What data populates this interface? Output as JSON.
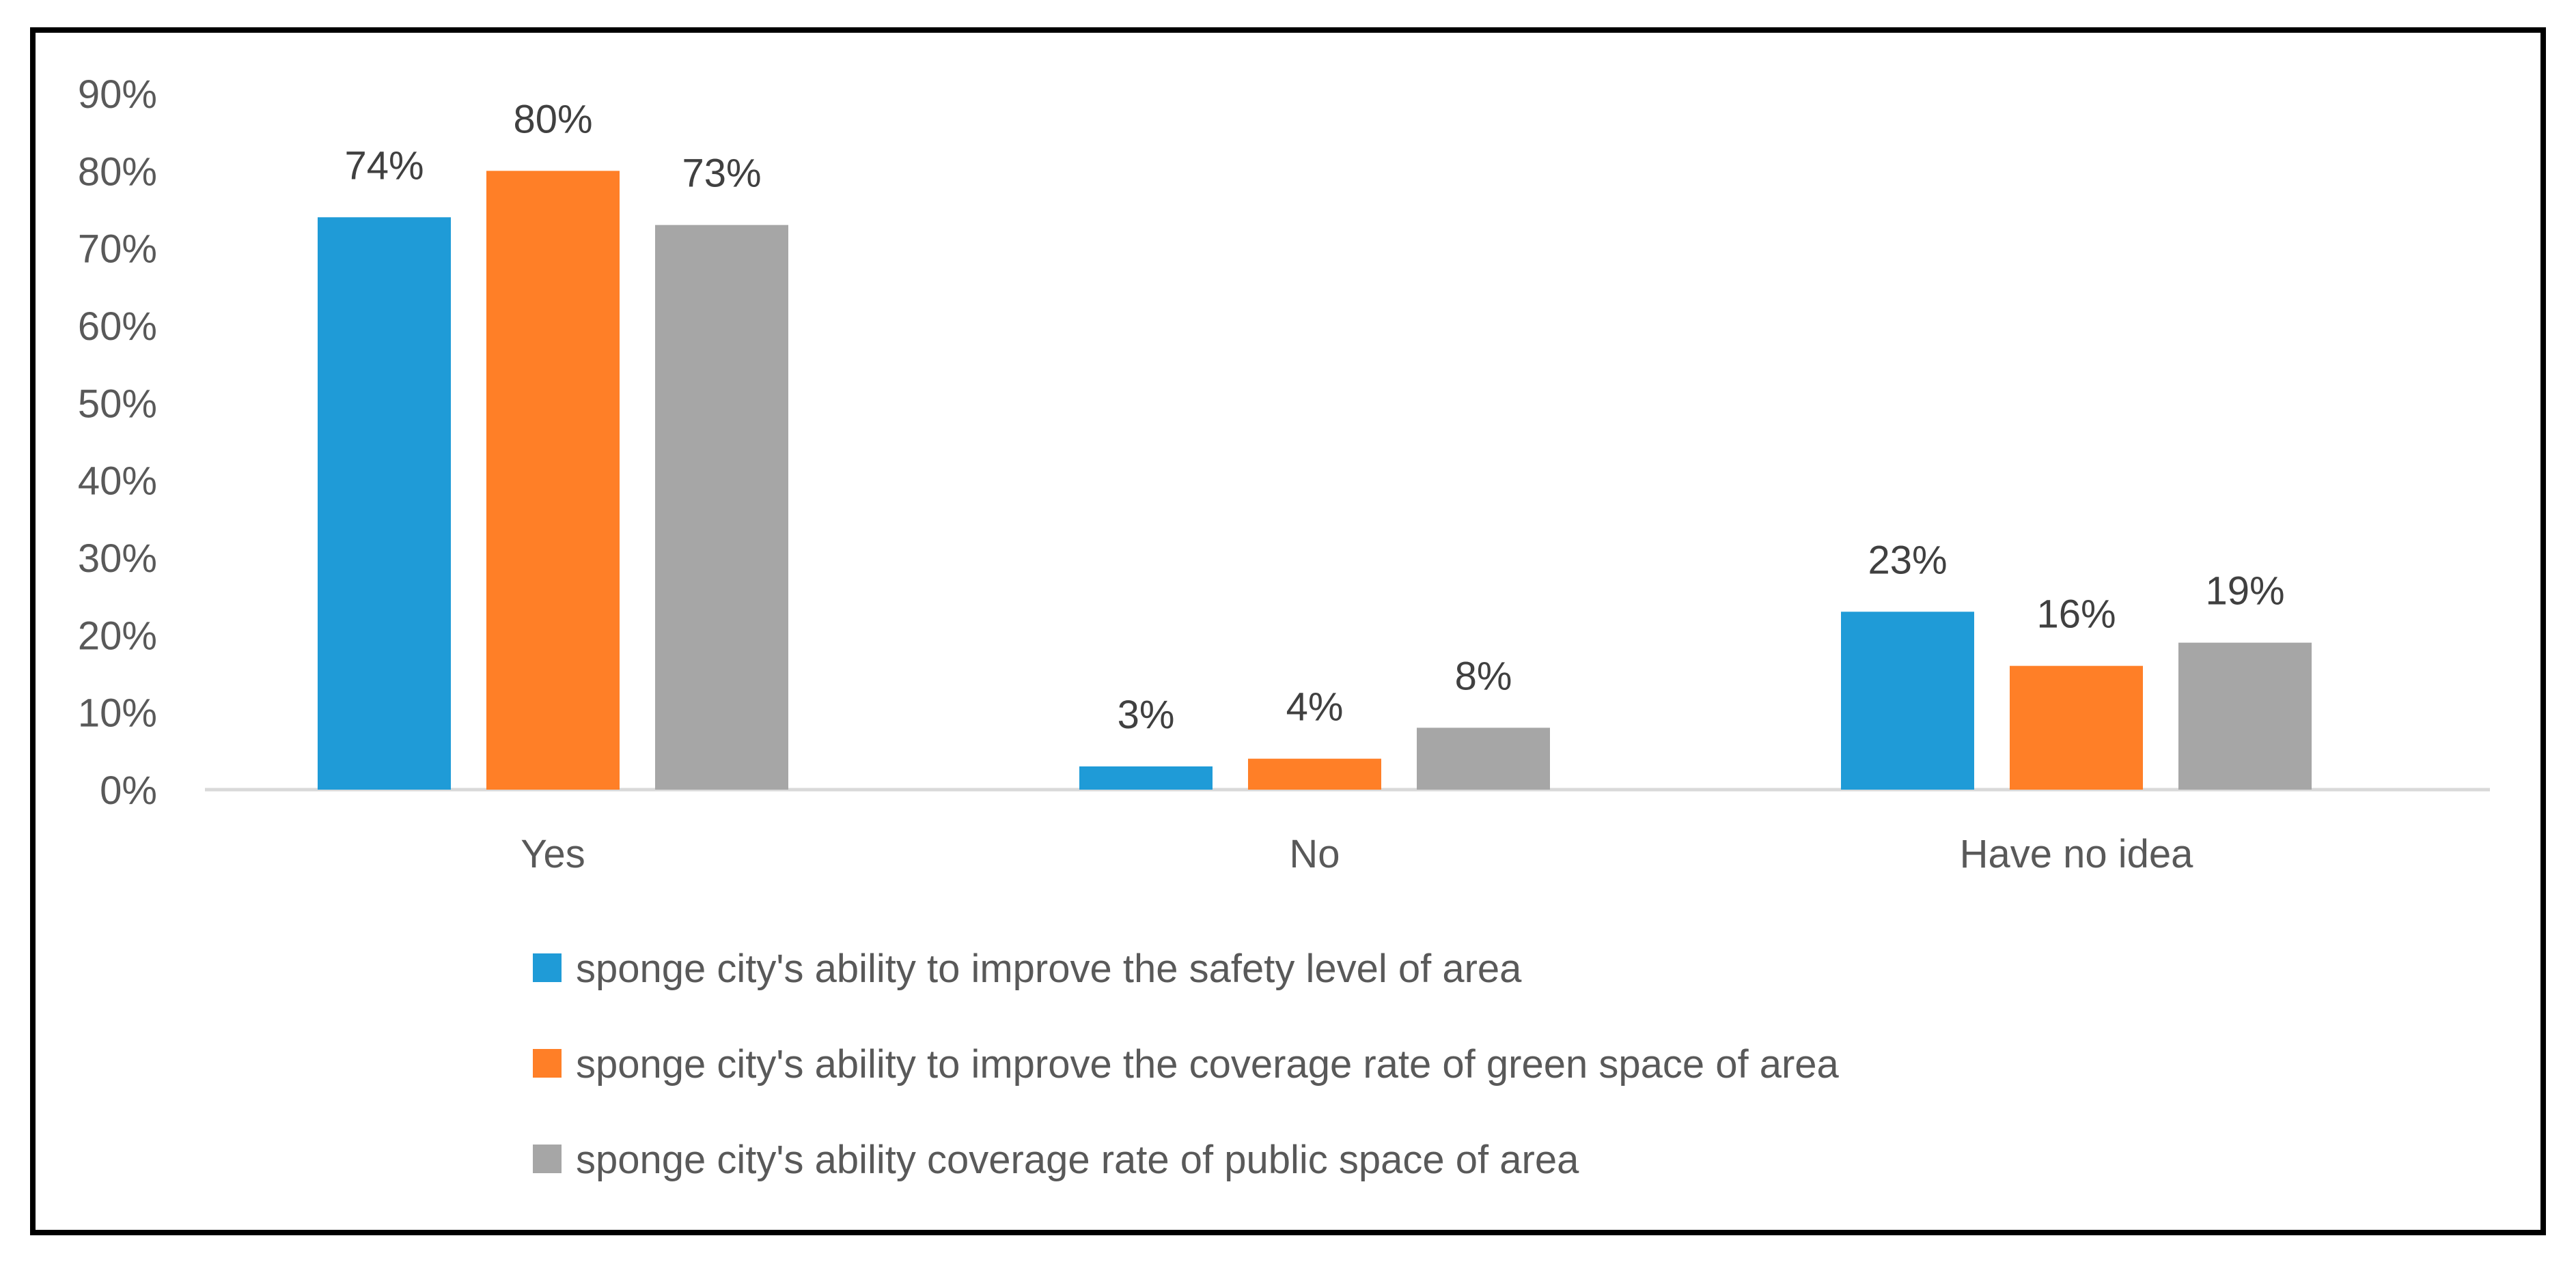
{
  "chart_data": {
    "type": "bar",
    "title": "",
    "xlabel": "",
    "ylabel": "",
    "ylim": [
      0,
      90
    ],
    "y_ticks": [
      "0%",
      "10%",
      "20%",
      "30%",
      "40%",
      "50%",
      "60%",
      "70%",
      "80%",
      "90%"
    ],
    "y_tick_values": [
      0,
      10,
      20,
      30,
      40,
      50,
      60,
      70,
      80,
      90
    ],
    "grid": false,
    "legend_position": "bottom",
    "categories": [
      "Yes",
      "No",
      "Have no idea"
    ],
    "series": [
      {
        "name": "sponge city's ability to improve the safety level of area",
        "values": [
          74,
          3,
          23
        ],
        "labels": [
          "74%",
          "3%",
          "23%"
        ],
        "color": "#1f9bd7"
      },
      {
        "name": "sponge city's ability to improve the coverage rate of green space of area",
        "values": [
          80,
          4,
          16
        ],
        "labels": [
          "80%",
          "4%",
          "16%"
        ],
        "color": "#ff7f27"
      },
      {
        "name": "sponge city's ability coverage rate of public space of area",
        "values": [
          73,
          8,
          19
        ],
        "labels": [
          "73%",
          "8%",
          "19%"
        ],
        "color": "#a6a6a6"
      }
    ]
  }
}
